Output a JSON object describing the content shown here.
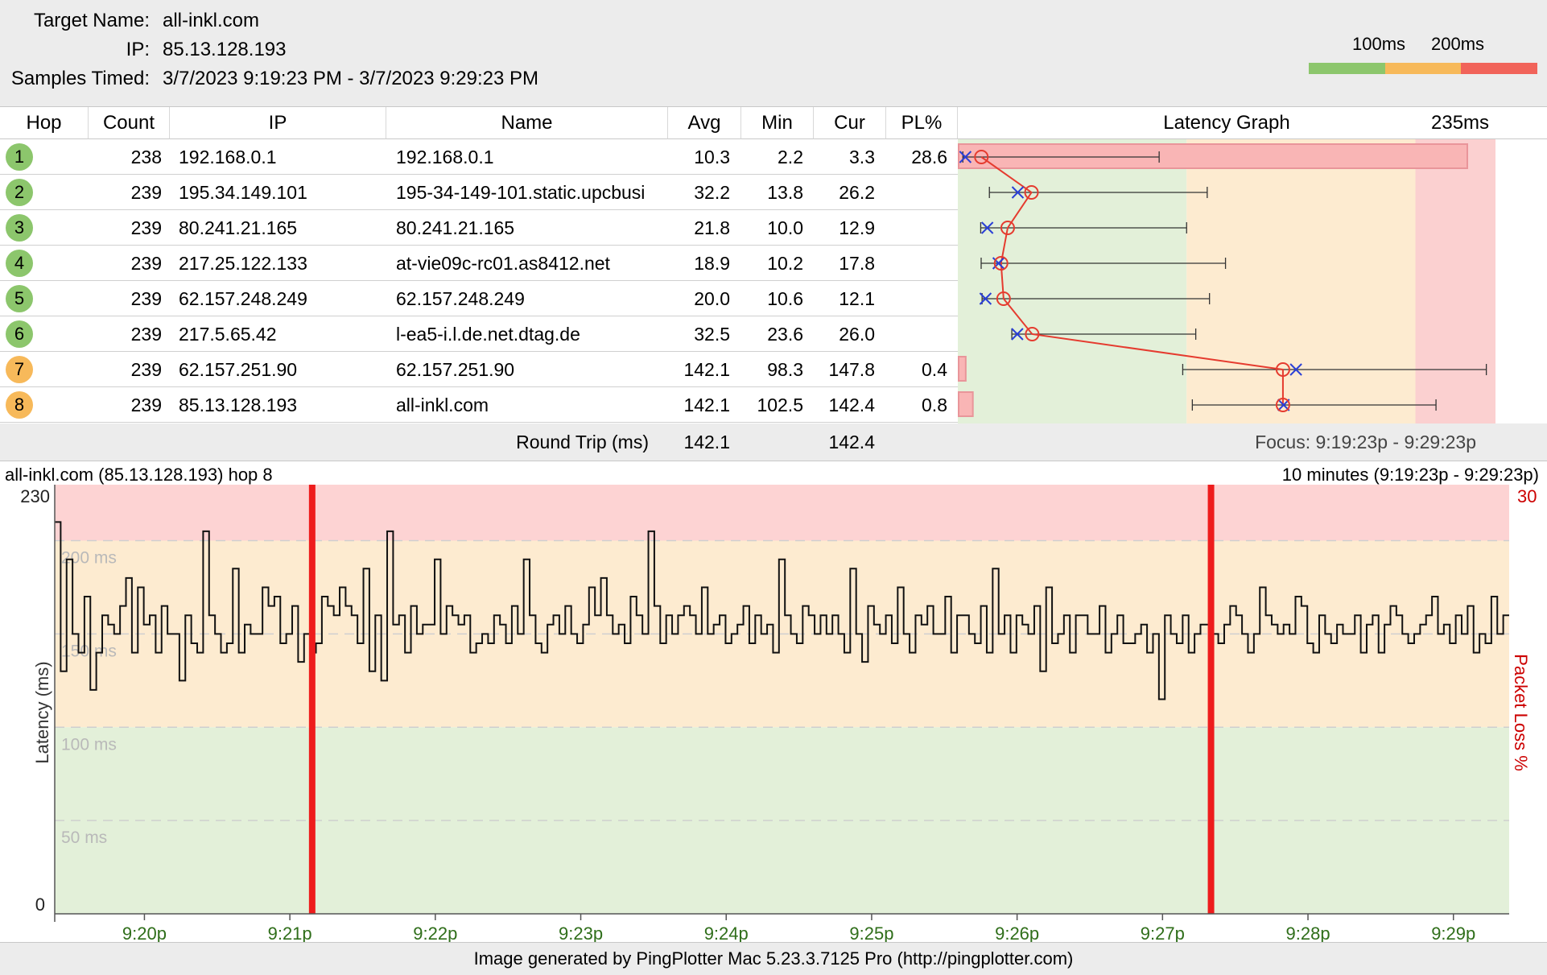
{
  "header": {
    "target_label": "Target Name:",
    "target_value": "all-inkl.com",
    "ip_label": "IP:",
    "ip_value": "85.13.128.193",
    "samples_label": "Samples Timed:",
    "samples_value": "3/7/2023 9:19:23 PM - 3/7/2023 9:29:23 PM",
    "legend_100": "100ms",
    "legend_200": "200ms",
    "legend_colors": [
      "#8cc66c",
      "#f7b95a",
      "#f1635a"
    ]
  },
  "table": {
    "columns": {
      "hop": "Hop",
      "count": "Count",
      "ip": "IP",
      "name": "Name",
      "avg": "Avg",
      "min": "Min",
      "cur": "Cur",
      "pl": "PL%",
      "graph": "Latency Graph",
      "graph_max": "235ms"
    },
    "rows": [
      {
        "hop": "1",
        "count": "238",
        "ip": "192.168.0.1",
        "name": "192.168.0.1",
        "avg": "10.3",
        "min": "2.2",
        "cur": "3.3",
        "pl": "28.6",
        "status": "green"
      },
      {
        "hop": "2",
        "count": "239",
        "ip": "195.34.149.101",
        "name": "195-34-149-101.static.upcbusi",
        "avg": "32.2",
        "min": "13.8",
        "cur": "26.2",
        "pl": "",
        "status": "green"
      },
      {
        "hop": "3",
        "count": "239",
        "ip": "80.241.21.165",
        "name": "80.241.21.165",
        "avg": "21.8",
        "min": "10.0",
        "cur": "12.9",
        "pl": "",
        "status": "green"
      },
      {
        "hop": "4",
        "count": "239",
        "ip": "217.25.122.133",
        "name": "at-vie09c-rc01.as8412.net",
        "avg": "18.9",
        "min": "10.2",
        "cur": "17.8",
        "pl": "",
        "status": "green"
      },
      {
        "hop": "5",
        "count": "239",
        "ip": "62.157.248.249",
        "name": "62.157.248.249",
        "avg": "20.0",
        "min": "10.6",
        "cur": "12.1",
        "pl": "",
        "status": "green"
      },
      {
        "hop": "6",
        "count": "239",
        "ip": "217.5.65.42",
        "name": "l-ea5-i.l.de.net.dtag.de",
        "avg": "32.5",
        "min": "23.6",
        "cur": "26.0",
        "pl": "",
        "status": "green"
      },
      {
        "hop": "7",
        "count": "239",
        "ip": "62.157.251.90",
        "name": "62.157.251.90",
        "avg": "142.1",
        "min": "98.3",
        "cur": "147.8",
        "pl": "0.4",
        "status": "orange"
      },
      {
        "hop": "8",
        "count": "239",
        "ip": "85.13.128.193",
        "name": "all-inkl.com",
        "avg": "142.1",
        "min": "102.5",
        "cur": "142.4",
        "pl": "0.8",
        "status": "orange"
      }
    ],
    "graph_max_ms": 235,
    "hop_ranges": [
      {
        "min": 2.2,
        "avg": 10.3,
        "cur": 3.3,
        "max": 88
      },
      {
        "min": 13.8,
        "avg": 32.2,
        "cur": 26.2,
        "max": 109
      },
      {
        "min": 10.0,
        "avg": 21.8,
        "cur": 12.9,
        "max": 100
      },
      {
        "min": 10.2,
        "avg": 18.9,
        "cur": 17.8,
        "max": 117
      },
      {
        "min": 10.6,
        "avg": 20.0,
        "cur": 12.1,
        "max": 110
      },
      {
        "min": 23.6,
        "avg": 32.5,
        "cur": 26.0,
        "max": 104
      },
      {
        "min": 98.3,
        "avg": 142.1,
        "cur": 147.8,
        "max": 231
      },
      {
        "min": 102.5,
        "avg": 142.1,
        "cur": 142.4,
        "max": 209
      }
    ],
    "round_trip_label": "Round Trip (ms)",
    "round_trip_avg": "142.1",
    "round_trip_cur": "142.4",
    "focus": "Focus: 9:19:23p - 9:29:23p"
  },
  "chart": {
    "title": "all-inkl.com (85.13.128.193) hop 8",
    "range": "10 minutes (9:19:23p - 9:29:23p)",
    "y_label": "Latency (ms)",
    "y2_label": "Packet Loss %",
    "y_top": "230",
    "y_bottom": "0",
    "y2_top": "30",
    "gridlines": [
      "200 ms",
      "150 ms",
      "100 ms",
      "50 ms"
    ],
    "x_ticks": [
      "9:20p",
      "9:21p",
      "9:22p",
      "9:23p",
      "9:24p",
      "9:25p",
      "9:26p",
      "9:27p",
      "9:28p",
      "9:29p"
    ],
    "loss_markers_minutes": [
      1.77,
      7.95
    ]
  },
  "chart_data": {
    "type": "line",
    "title": "all-inkl.com (85.13.128.193) hop 8",
    "xlabel": "",
    "ylabel": "Latency (ms)",
    "y2label": "Packet Loss %",
    "ylim": [
      0,
      230
    ],
    "y2lim": [
      0,
      30
    ],
    "x_ticks": [
      "9:20p",
      "9:21p",
      "9:22p",
      "9:23p",
      "9:24p",
      "9:25p",
      "9:26p",
      "9:27p",
      "9:28p",
      "9:29p"
    ],
    "grid": true,
    "samples": 239,
    "latency_ms": [
      210,
      130,
      190,
      150,
      140,
      170,
      120,
      140,
      160,
      155,
      150,
      165,
      180,
      140,
      175,
      155,
      160,
      140,
      165,
      150,
      150,
      125,
      160,
      145,
      140,
      205,
      160,
      150,
      140,
      145,
      185,
      140,
      155,
      150,
      150,
      175,
      165,
      170,
      145,
      150,
      165,
      135,
      150,
      140,
      145,
      170,
      165,
      160,
      175,
      165,
      160,
      145,
      185,
      130,
      160,
      125,
      205,
      155,
      160,
      140,
      165,
      150,
      155,
      155,
      190,
      150,
      165,
      160,
      155,
      160,
      140,
      145,
      150,
      145,
      160,
      155,
      145,
      165,
      150,
      190,
      160,
      145,
      140,
      155,
      160,
      150,
      165,
      150,
      145,
      155,
      175,
      160,
      180,
      160,
      150,
      155,
      145,
      170,
      160,
      150,
      205,
      165,
      145,
      160,
      150,
      160,
      165,
      160,
      150,
      175,
      150,
      155,
      160,
      145,
      150,
      155,
      165,
      145,
      160,
      150,
      155,
      140,
      190,
      160,
      150,
      145,
      165,
      160,
      150,
      160,
      150,
      160,
      150,
      140,
      185,
      150,
      135,
      165,
      155,
      150,
      160,
      145,
      175,
      150,
      140,
      160,
      155,
      165,
      150,
      150,
      170,
      140,
      160,
      160,
      150,
      145,
      165,
      140,
      185,
      150,
      160,
      140,
      160,
      155,
      150,
      165,
      130,
      175,
      145,
      150,
      160,
      140,
      160,
      160,
      150,
      150,
      165,
      140,
      150,
      160,
      145,
      145,
      150,
      155,
      140,
      150,
      115,
      160,
      150,
      145,
      160,
      140,
      150,
      155,
      155,
      150,
      145,
      155,
      165,
      160,
      150,
      140,
      150,
      175,
      160,
      155,
      150,
      155,
      150,
      170,
      165,
      145,
      140,
      160,
      150,
      145,
      155,
      150,
      150,
      160,
      140,
      155,
      160,
      140,
      155,
      165,
      160,
      150,
      145,
      150,
      155,
      160,
      170,
      150,
      155,
      145,
      160,
      150,
      165,
      140,
      150,
      145,
      170,
      150,
      160
    ],
    "loss_markers_minutes": [
      1.77,
      7.95
    ]
  }
}
